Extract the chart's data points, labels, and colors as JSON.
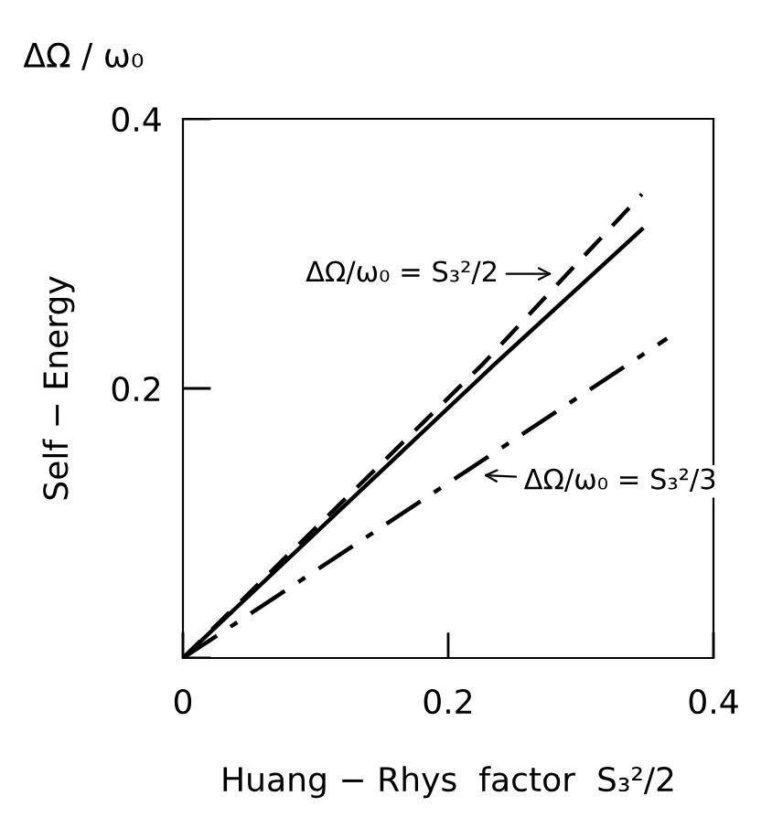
{
  "chart_data": {
    "type": "line",
    "xlabel": "Huang − Rhys  factor  S₃²/2",
    "ylabel": "Self − Energy",
    "xlim": [
      0,
      0.4
    ],
    "ylim": [
      0,
      0.4
    ],
    "xticks": [
      0,
      0.2,
      0.4
    ],
    "yticks": [
      {
        "value": 0,
        "label": null
      },
      0.2,
      0.4
    ],
    "grid": false,
    "legend": false,
    "marker": "none",
    "series": [
      {
        "color": "#000000",
        "line_style": "dashed",
        "x": [
          0,
          0.225,
          0.346
        ],
        "values": [
          0,
          0.217,
          0.344
        ]
      },
      {
        "color": "#000000",
        "line_style": "solid",
        "x": [
          0,
          0.234,
          0.346
        ],
        "values": [
          0,
          0.217,
          0.318
        ]
      },
      {
        "color": "#000000",
        "line_style": "dashdot",
        "x": [
          0,
          0.145,
          0.365
        ],
        "values": [
          0,
          0.094,
          0.237
        ]
      }
    ],
    "annotations": [
      "ΔΩ / ω₀",
      {
        "text": "ΔΩ/ω₀ = S₃²/2",
        "x": 0.288,
        "y": 0.285
      },
      {
        "text": "ΔΩ/ω₀ = S₃²/3",
        "x": 0.217,
        "y": 0.136
      }
    ]
  }
}
